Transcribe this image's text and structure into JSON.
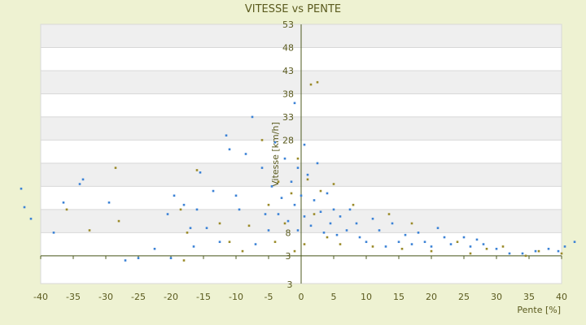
{
  "colors": {
    "background": "#eef2d2",
    "plot_background": "#ffffff",
    "band": "#efefef",
    "text": "#5a5a1e",
    "axis": "#4c5a1e",
    "gridline": "#d8d8d8",
    "series_1": "#3b82d6",
    "series_2": "#9a8a28"
  },
  "chart_data": {
    "type": "scatter",
    "title": "VITESSE vs PENTE",
    "xlabel": "Pente [%]",
    "ylabel": "Vitesse [km/h]",
    "xlim": [
      -40,
      40
    ],
    "ylim": [
      -3,
      53
    ],
    "x_ticks": [
      -40,
      -35,
      -30,
      -25,
      -20,
      -15,
      -10,
      -5,
      0,
      5,
      10,
      15,
      20,
      25,
      30,
      35,
      40
    ],
    "y_ticks": [
      3,
      8,
      13,
      18,
      23,
      28,
      33,
      38,
      43,
      48,
      53
    ],
    "y_tick_labels": [
      "3",
      "8",
      "",
      "",
      "",
      "28",
      "33",
      "38",
      "43",
      "48",
      "53"
    ],
    "y_axis_bottom_label": "3",
    "x_axis_crosses_at_y": 3,
    "y_axis_position_x": 0,
    "grid": true,
    "legend": "none",
    "series": [
      {
        "points": [
          [
            -43,
            17.5
          ],
          [
            -42.5,
            13.5
          ],
          [
            -41.5,
            11
          ],
          [
            -38,
            8
          ],
          [
            -36.5,
            14.5
          ],
          [
            -34,
            18.5
          ],
          [
            -33.5,
            19.5
          ],
          [
            -29.5,
            14.5
          ],
          [
            -27,
            2
          ],
          [
            -25,
            2.5
          ],
          [
            -22.5,
            4.5
          ],
          [
            -20.5,
            12
          ],
          [
            -20,
            2.5
          ],
          [
            -19.5,
            16
          ],
          [
            -18,
            14
          ],
          [
            -17,
            9
          ],
          [
            -16.5,
            5
          ],
          [
            -16,
            13
          ],
          [
            -15.5,
            21
          ],
          [
            -14.5,
            9
          ],
          [
            -13.5,
            17
          ],
          [
            -12.5,
            6
          ],
          [
            -11.5,
            29
          ],
          [
            -11,
            26
          ],
          [
            -10,
            16
          ],
          [
            -9.5,
            13
          ],
          [
            -8.5,
            25
          ],
          [
            -7.5,
            33
          ],
          [
            -7,
            5.5
          ],
          [
            -6,
            22
          ],
          [
            -5.5,
            12
          ],
          [
            -5,
            8.5
          ],
          [
            -4.5,
            18
          ],
          [
            -4,
            27.5
          ],
          [
            -3.5,
            12
          ],
          [
            -3,
            15.5
          ],
          [
            -2.5,
            24
          ],
          [
            -2,
            10.5
          ],
          [
            -1.5,
            19
          ],
          [
            -1,
            36
          ],
          [
            -1,
            14
          ],
          [
            -0.5,
            22
          ],
          [
            -0.5,
            8.5
          ],
          [
            0,
            16
          ],
          [
            0.5,
            27
          ],
          [
            0.5,
            11.5
          ],
          [
            1,
            20.5
          ],
          [
            1.5,
            9.5
          ],
          [
            2,
            15
          ],
          [
            2.5,
            23
          ],
          [
            3,
            12.5
          ],
          [
            3.5,
            8
          ],
          [
            4,
            16.5
          ],
          [
            4.5,
            10
          ],
          [
            5,
            13
          ],
          [
            5.5,
            7.5
          ],
          [
            6,
            11.5
          ],
          [
            7,
            8.5
          ],
          [
            7.5,
            13
          ],
          [
            8.5,
            10
          ],
          [
            9,
            7
          ],
          [
            10,
            6
          ],
          [
            11,
            11
          ],
          [
            12,
            8.5
          ],
          [
            13,
            5
          ],
          [
            14,
            10
          ],
          [
            15,
            6
          ],
          [
            16,
            7.5
          ],
          [
            17,
            5.5
          ],
          [
            18,
            8
          ],
          [
            19,
            6
          ],
          [
            20,
            5
          ],
          [
            21,
            9
          ],
          [
            22,
            7
          ],
          [
            23,
            5.5
          ],
          [
            25,
            7
          ],
          [
            26,
            5
          ],
          [
            27,
            6.5
          ],
          [
            28,
            5.5
          ],
          [
            30,
            4.5
          ],
          [
            32,
            3.5
          ],
          [
            34,
            3.5
          ],
          [
            36,
            4
          ],
          [
            38,
            4.5
          ],
          [
            39.5,
            4
          ],
          [
            40.5,
            5
          ],
          [
            42,
            6
          ]
        ]
      },
      {
        "points": [
          [
            -36,
            13
          ],
          [
            -32.5,
            8.5
          ],
          [
            -28.5,
            22
          ],
          [
            -28,
            10.5
          ],
          [
            -18.5,
            13
          ],
          [
            -18,
            2
          ],
          [
            -17.5,
            8
          ],
          [
            -16,
            21.5
          ],
          [
            -12.5,
            10
          ],
          [
            -11,
            6
          ],
          [
            -9,
            4
          ],
          [
            -8,
            9.5
          ],
          [
            -6,
            28
          ],
          [
            -5,
            14
          ],
          [
            -4,
            6
          ],
          [
            -3.5,
            19
          ],
          [
            -2.5,
            10
          ],
          [
            -1.5,
            16.5
          ],
          [
            -1,
            4
          ],
          [
            -0.5,
            24
          ],
          [
            0.5,
            5.5
          ],
          [
            1,
            19.5
          ],
          [
            1.5,
            40
          ],
          [
            2,
            12
          ],
          [
            2.5,
            40.5
          ],
          [
            3,
            17
          ],
          [
            4,
            7
          ],
          [
            5,
            18.5
          ],
          [
            6,
            5.5
          ],
          [
            8,
            14
          ],
          [
            11,
            5
          ],
          [
            13.5,
            12
          ],
          [
            15.5,
            4.5
          ],
          [
            17,
            10
          ],
          [
            20,
            4
          ],
          [
            24,
            6
          ],
          [
            26,
            3.5
          ],
          [
            28.5,
            4.5
          ],
          [
            31,
            5
          ],
          [
            34.5,
            3
          ],
          [
            36.5,
            4
          ],
          [
            40,
            3.5
          ]
        ]
      }
    ]
  }
}
